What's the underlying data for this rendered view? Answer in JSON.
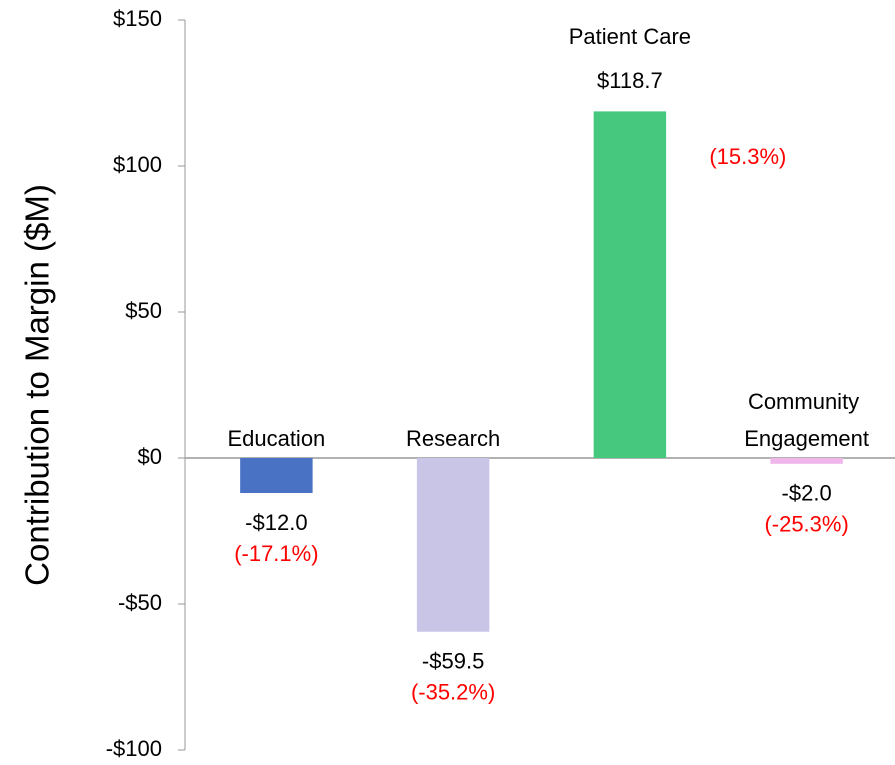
{
  "chart_data": {
    "type": "bar",
    "y_label": "Contribution to Margin ($M)",
    "categories": [
      "Education",
      "Research",
      "Patient Care",
      "Community Engagement"
    ],
    "values": [
      -12.0,
      -59.5,
      118.7,
      -2.0
    ],
    "value_labels": [
      "-$12.0",
      "-$59.5",
      "$118.7",
      "-$2.0"
    ],
    "annotations": [
      "(-17.1%)",
      "(-35.2%)",
      "(15.3%)",
      "(-25.3%)"
    ],
    "colors": [
      "#4a72c4",
      "#c8c5e6",
      "#46c97f",
      "#f0b8ea"
    ],
    "annotation_color": "#ff0000",
    "ylim": [
      -100,
      150
    ],
    "yticks": [
      {
        "value": -100,
        "label": "-$100"
      },
      {
        "value": -50,
        "label": "-$50"
      },
      {
        "value": 0,
        "label": "$0"
      },
      {
        "value": 50,
        "label": "$50"
      },
      {
        "value": 100,
        "label": "$100"
      },
      {
        "value": 150,
        "label": "$150"
      }
    ],
    "grid": false
  }
}
